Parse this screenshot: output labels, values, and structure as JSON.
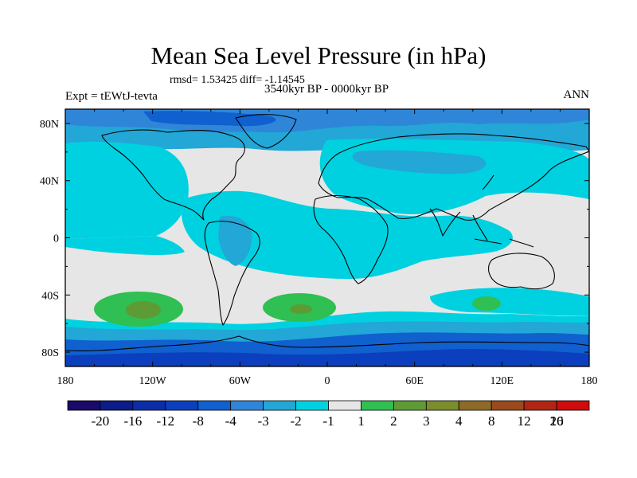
{
  "header": {
    "title": "Mean Sea Level Pressure (in hPa)",
    "stats": "rmsd= 1.53425 diff= -1.14545",
    "expt": "Expt = tEWtJ-tevta",
    "period": "3540kyr BP - 0000kyr BP",
    "season": "ANN"
  },
  "colors": {
    "bins": [
      "#1b0a6a",
      "#0c1c8a",
      "#0b2ea8",
      "#0b3fbe",
      "#1060cf",
      "#2f86d9",
      "#22a7d6",
      "#00d1e0",
      "#e6e6e6",
      "#2fbf52",
      "#5e9b35",
      "#7b8d2c",
      "#8e6a28",
      "#9a4a1d",
      "#b02613",
      "#cf0b0b"
    ],
    "land_outline": "#000000"
  },
  "chart_data": {
    "type": "heatmap",
    "title": "Mean Sea Level Pressure (in hPa)",
    "subtitle": "3540kyr BP - 0000kyr BP",
    "xlabel": "",
    "ylabel": "",
    "x_ticks": [
      "180",
      "120W",
      "60W",
      "0",
      "60E",
      "120E",
      "180"
    ],
    "x_tick_values": [
      -180,
      -120,
      -60,
      0,
      60,
      120,
      180
    ],
    "y_ticks": [
      "80N",
      "40N",
      "0",
      "40S",
      "80S"
    ],
    "y_tick_values": [
      80,
      40,
      0,
      -40,
      -80
    ],
    "xlim": [
      -180,
      180
    ],
    "ylim": [
      -90,
      90
    ],
    "colorbar_labels": [
      "-20",
      "-16",
      "-12",
      "-8",
      "-4",
      "-3",
      "-2",
      "-1",
      "1",
      "2",
      "3",
      "4",
      "8",
      "12",
      "16",
      "20"
    ],
    "levels": [
      -20,
      -16,
      -12,
      -8,
      -4,
      -3,
      -2,
      -1,
      1,
      2,
      3,
      4,
      8,
      12,
      16,
      20
    ],
    "field_regions": [
      {
        "name": "near-zero background",
        "value": 0,
        "lon": [
          -180,
          180
        ],
        "lat": [
          -90,
          90
        ]
      },
      {
        "name": "north polar low",
        "value": -3.5,
        "lon": [
          -180,
          180
        ],
        "lat": [
          60,
          90
        ]
      },
      {
        "name": "arctic deep low",
        "value": -5,
        "lon": [
          -120,
          -20
        ],
        "lat": [
          72,
          90
        ]
      },
      {
        "name": "north pacific low",
        "value": -1.5,
        "lon": [
          -180,
          -100
        ],
        "lat": [
          30,
          60
        ]
      },
      {
        "name": "eurasia low",
        "value": -1.5,
        "lon": [
          0,
          180
        ],
        "lat": [
          20,
          70
        ]
      },
      {
        "name": "siberia deeper low",
        "value": -2.5,
        "lon": [
          30,
          110
        ],
        "lat": [
          45,
          70
        ]
      },
      {
        "name": "tropical belt low",
        "value": -1.5,
        "lon": [
          -110,
          130
        ],
        "lat": [
          -30,
          20
        ]
      },
      {
        "name": "south america low",
        "value": -2.5,
        "lon": [
          -75,
          -45
        ],
        "lat": [
          -20,
          10
        ]
      },
      {
        "name": "southern ocean low",
        "value": -3,
        "lon": [
          -180,
          180
        ],
        "lat": [
          -72,
          -60
        ]
      },
      {
        "name": "antarctic deep low",
        "value": -5,
        "lon": [
          -180,
          180
        ],
        "lat": [
          -90,
          -72
        ]
      },
      {
        "name": "south pacific high",
        "value": 2,
        "lon": [
          -160,
          -95
        ],
        "lat": [
          -57,
          -40
        ]
      },
      {
        "name": "south pacific high core",
        "value": 3.5,
        "lon": [
          -145,
          -115
        ],
        "lat": [
          -53,
          -44
        ]
      },
      {
        "name": "south atlantic high",
        "value": 2,
        "lon": [
          -50,
          5
        ],
        "lat": [
          -56,
          -42
        ]
      },
      {
        "name": "south atlantic high core",
        "value": 3.5,
        "lon": [
          -28,
          -12
        ],
        "lat": [
          -52,
          -46
        ]
      },
      {
        "name": "south indian high",
        "value": 2,
        "lon": [
          100,
          125
        ],
        "lat": [
          -52,
          -43
        ]
      }
    ]
  }
}
